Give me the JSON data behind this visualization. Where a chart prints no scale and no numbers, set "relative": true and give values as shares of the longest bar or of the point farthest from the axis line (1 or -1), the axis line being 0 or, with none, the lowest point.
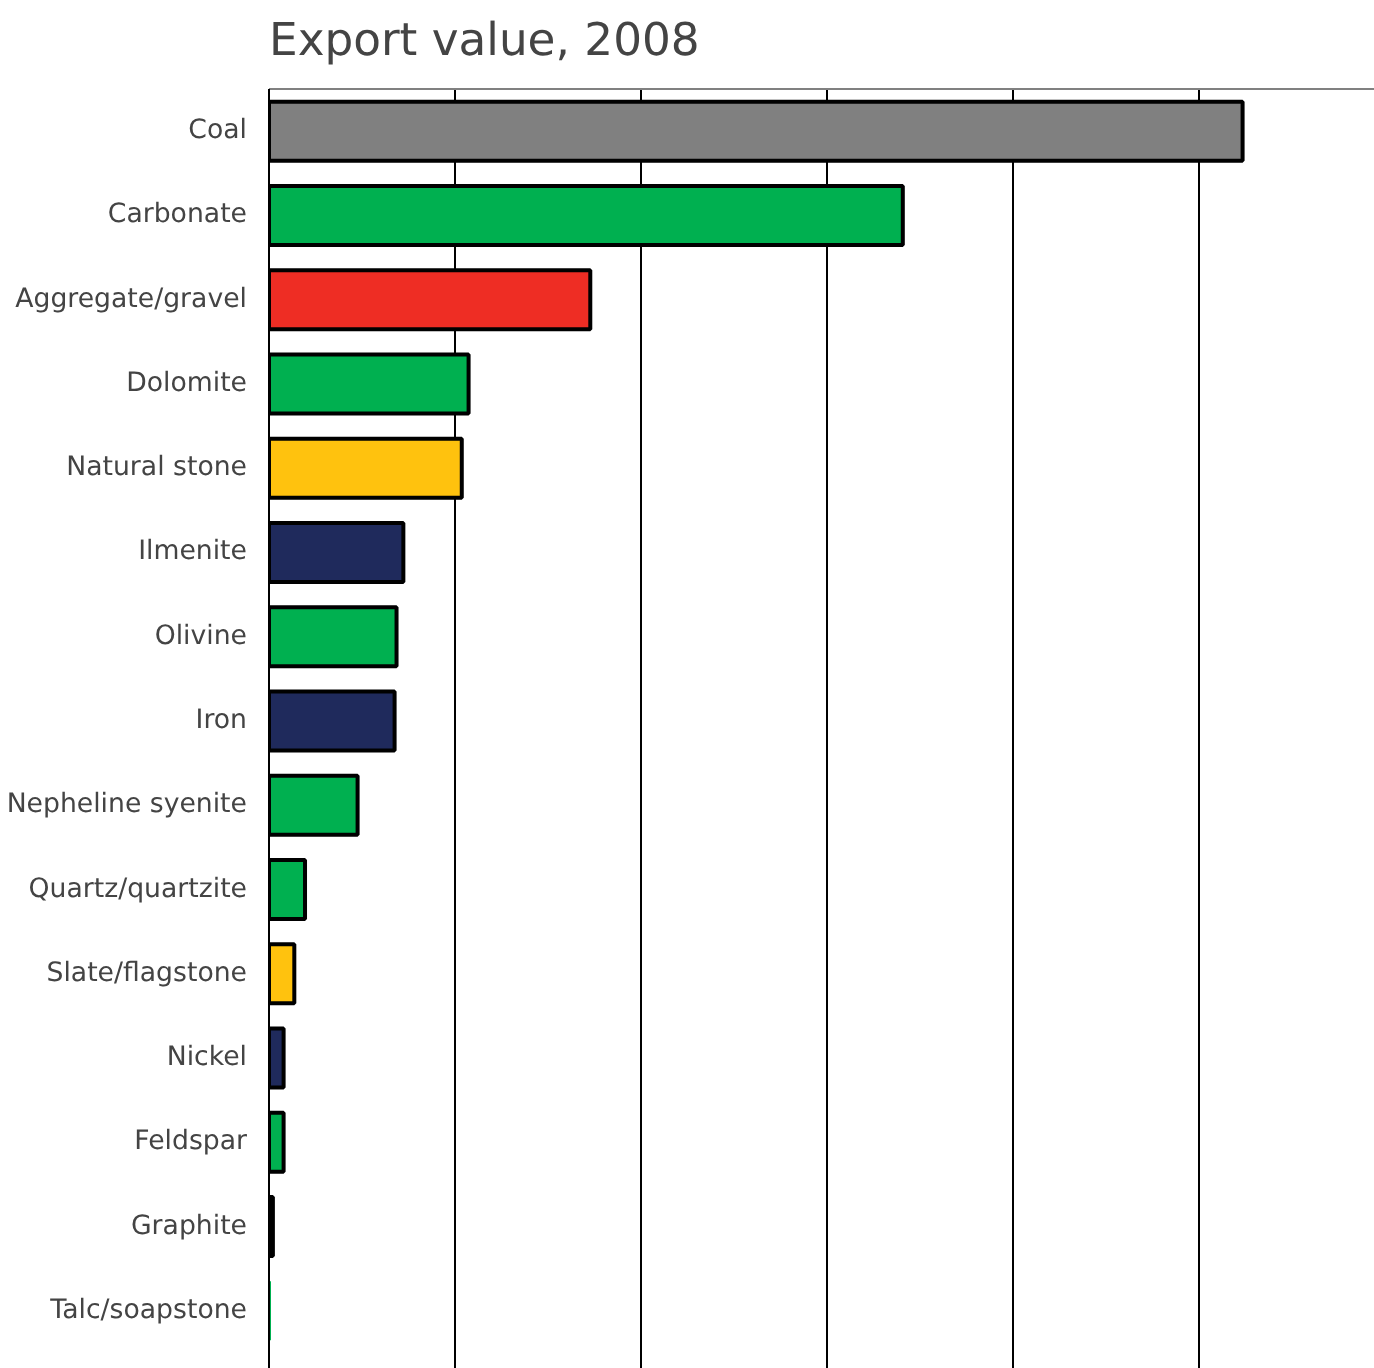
{
  "chart_data": {
    "type": "bar",
    "orientation": "horizontal",
    "relative": true,
    "title": "Export value, 2008",
    "grid": "x",
    "categories": [
      "Coal",
      "Carbonate",
      "Aggregate/gravel",
      "Dolomite",
      "Natural stone",
      "Ilmenite",
      "Olivine",
      "Iron",
      "Nepheline syenite",
      "Quartz/quartzite",
      "Slate/flagstone",
      "Nickel",
      "Feldspar",
      "Graphite",
      "Talc/soapstone"
    ],
    "values": [
      1,
      0.651,
      0.33,
      0.205,
      0.198,
      0.138,
      0.131,
      0.129,
      0.091,
      0.037,
      0.026,
      0.015,
      0.015,
      0.004,
      0
    ],
    "colors": [
      "#808080",
      "#00b050",
      "#ee2d24",
      "#00b050",
      "#ffc20e",
      "#1f2a5c",
      "#00b050",
      "#1f2a5c",
      "#00b050",
      "#00b050",
      "#ffc20e",
      "#1f2a5c",
      "#00b050",
      "#00b050",
      "#00b050"
    ]
  }
}
